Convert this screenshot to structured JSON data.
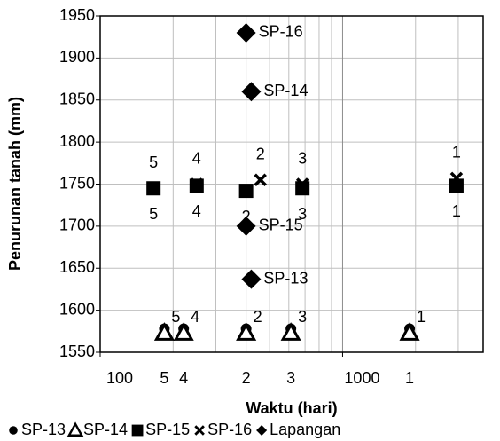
{
  "chart_data": {
    "type": "scatter",
    "x_label": "Waktu (hari)",
    "y_label": "Penurunan tanah (mm)",
    "xlim": [
      100,
      3800
    ],
    "xticks": [
      100,
      1000
    ],
    "x_log": true,
    "x_minor_grid": true,
    "ylim": [
      1550,
      1950
    ],
    "yticks": [
      1550,
      1600,
      1650,
      1700,
      1750,
      1800,
      1850,
      1900,
      1950
    ],
    "grid": true,
    "legend_position": "bottom",
    "series": [
      {
        "name": "SP-13",
        "marker": "circle",
        "color": "#000000",
        "x": [
          184,
          221,
          400,
          612,
          1890
        ],
        "values": [
          1578,
          1578,
          1578,
          1578,
          1578
        ],
        "point_labels": [
          "5",
          "4",
          "2",
          "3",
          "1"
        ],
        "label_position": "upper-right"
      },
      {
        "name": "SP-14",
        "marker": "triangle",
        "color": "#000000",
        "x": [
          184,
          221,
          400,
          612,
          1890
        ],
        "values": [
          1573,
          1573,
          1573,
          1573,
          1573
        ],
        "point_labels": [
          "5",
          "4",
          "2",
          "3",
          "1"
        ],
        "label_position": "below"
      },
      {
        "name": "SP-15",
        "marker": "square",
        "color": "#000000",
        "x": [
          166,
          250,
          400,
          683,
          2950
        ],
        "values": [
          1745,
          1748,
          1742,
          1745,
          1748
        ],
        "point_labels": [
          "5",
          "4",
          "2",
          "3",
          "1"
        ],
        "label_position": "below"
      },
      {
        "name": "SP-16",
        "marker": "x",
        "color": "#000000",
        "x": [
          166,
          250,
          458,
          683,
          2950
        ],
        "values": [
          1745,
          1750,
          1755,
          1750,
          1757
        ],
        "point_labels": [
          "5",
          "4",
          "2",
          "3",
          "1"
        ],
        "label_position": "above"
      },
      {
        "name": "Lapangan",
        "marker": "diamond",
        "color": "#000000",
        "x": [
          400,
          420,
          400,
          420
        ],
        "values": [
          1930,
          1860,
          1700,
          1637
        ],
        "point_labels": [
          "SP-16",
          "SP-14",
          "SP-15",
          "SP-13"
        ],
        "label_position": "right"
      }
    ]
  }
}
